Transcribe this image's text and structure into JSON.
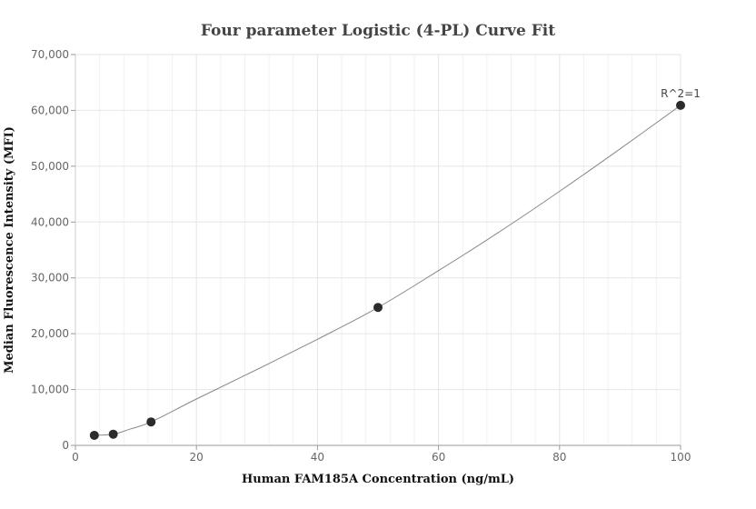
{
  "chart_data": {
    "type": "scatter",
    "title": "Four parameter Logistic (4-PL) Curve Fit",
    "xlabel": "Human FAM185A Concentration (ng/mL)",
    "ylabel": "Median Fluorescence Intensity (MFI)",
    "xlim": [
      0,
      100
    ],
    "ylim": [
      0,
      70000
    ],
    "x_ticks": [
      0,
      20,
      40,
      60,
      80,
      100
    ],
    "x_tick_labels": [
      "0",
      "20",
      "40",
      "60",
      "80",
      "100"
    ],
    "y_ticks": [
      0,
      10000,
      20000,
      30000,
      40000,
      50000,
      60000,
      70000
    ],
    "y_tick_labels": [
      "0",
      "10,000",
      "20,000",
      "30,000",
      "40,000",
      "50,000",
      "60,000",
      "70,000"
    ],
    "grid": true,
    "points": {
      "x": [
        3.125,
        6.25,
        12.5,
        50,
        100
      ],
      "y": [
        1800,
        2000,
        4200,
        24700,
        60900
      ]
    },
    "fit_curve": {
      "x": [
        3.125,
        6.25,
        9,
        12.5,
        20,
        30,
        40,
        50,
        60,
        70,
        80,
        90,
        100
      ],
      "y": [
        1800,
        2000,
        2900,
        4200,
        8300,
        13600,
        19000,
        24700,
        31300,
        38200,
        45500,
        53100,
        60900
      ]
    },
    "annotation": "R^2=1",
    "colors": {
      "points": "#2b2b2b",
      "curve": "#888888",
      "grid": "#e6e6e6",
      "axis": "#cccccc"
    }
  }
}
